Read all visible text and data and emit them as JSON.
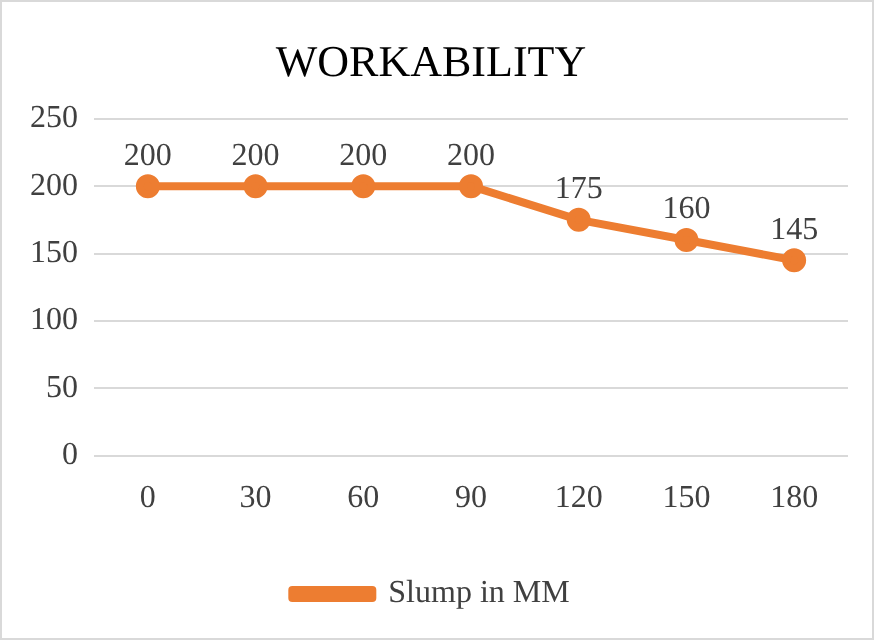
{
  "chart_data": {
    "type": "line",
    "title": "WORKABILITY",
    "categories": [
      "0",
      "30",
      "60",
      "90",
      "120",
      "150",
      "180"
    ],
    "series": [
      {
        "name": "Slump in MM",
        "color": "#ed7d31",
        "values": [
          200,
          200,
          200,
          200,
          175,
          160,
          145
        ]
      }
    ],
    "ylim": [
      0,
      250
    ],
    "yticks": [
      0,
      50,
      100,
      150,
      200,
      250
    ],
    "grid": "y",
    "legend": "bottom",
    "marker": "circle",
    "line_style": "solid",
    "data_labels": true
  }
}
